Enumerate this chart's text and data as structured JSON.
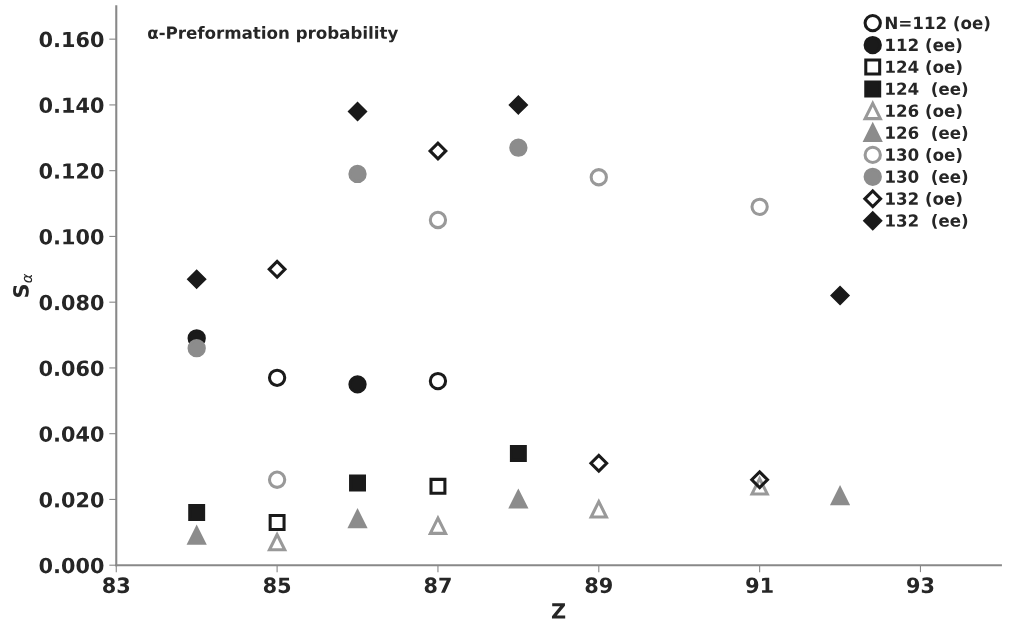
{
  "chart_data": {
    "type": "scatter",
    "xlabel": "Z",
    "ylabel": "S$_{α}$",
    "annotations": [
      "α-Preformation probability"
    ],
    "xlim": [
      83,
      94
    ],
    "xticks": [
      83,
      85,
      87,
      89,
      91,
      93
    ],
    "ylim": [
      0,
      0.17
    ],
    "yticks": [
      {
        "value": 0,
        "label": "0.000"
      },
      {
        "value": 0.02,
        "label": "0.020"
      },
      {
        "value": 0.04,
        "label": "0.040"
      },
      {
        "value": 0.06,
        "label": "0.060"
      },
      {
        "value": 0.08,
        "label": "0.080"
      },
      {
        "value": 0.1,
        "label": "0.100"
      },
      {
        "value": 0.12,
        "label": "0.120"
      },
      {
        "value": 0.14,
        "label": "0.140"
      },
      {
        "value": 0.16,
        "label": "0.160"
      }
    ],
    "grid": false,
    "legend": "top right",
    "series": [
      {
        "name": "N=112 (oe)",
        "color": "#1a1a1a",
        "marker": "circle",
        "x": [
          85,
          87
        ],
        "values": [
          0.057,
          0.056
        ]
      },
      {
        "name": "112 (ee)",
        "color": "#1a1a1a",
        "marker": "circle",
        "x": [
          84,
          86
        ],
        "values": [
          0.069,
          0.055
        ]
      },
      {
        "name": "124 (oe)",
        "color": "#1a1a1a",
        "marker": "square",
        "x": [
          85,
          87
        ],
        "values": [
          0.013,
          0.024
        ]
      },
      {
        "name": "124  (ee)",
        "color": "#1a1a1a",
        "marker": "square",
        "x": [
          84,
          86,
          88
        ],
        "values": [
          0.016,
          0.025,
          0.034
        ]
      },
      {
        "name": "126 (oe)",
        "color": "#999999",
        "marker": "triangle",
        "x": [
          85,
          87,
          89,
          91
        ],
        "values": [
          0.007,
          0.012,
          0.017,
          0.024
        ]
      },
      {
        "name": "126  (ee)",
        "color": "#8c8c8c",
        "marker": "triangle",
        "x": [
          84,
          86,
          88,
          92
        ],
        "values": [
          0.009,
          0.014,
          0.02,
          0.021
        ]
      },
      {
        "name": "130 (oe)",
        "color": "#999999",
        "marker": "circle",
        "x": [
          85,
          87,
          89,
          91
        ],
        "values": [
          0.026,
          0.105,
          0.118,
          0.109
        ]
      },
      {
        "name": "130  (ee)",
        "color": "#8c8c8c",
        "marker": "circle",
        "x": [
          84,
          86,
          88
        ],
        "values": [
          0.066,
          0.119,
          0.127
        ]
      },
      {
        "name": "132 (oe)",
        "color": "#1a1a1a",
        "marker": "diamond",
        "x": [
          85,
          87,
          89,
          91
        ],
        "values": [
          0.09,
          0.126,
          0.031,
          0.026
        ]
      },
      {
        "name": "132  (ee)",
        "color": "#1a1a1a",
        "marker": "diamond",
        "x": [
          84,
          86,
          88,
          92
        ],
        "values": [
          0.087,
          0.138,
          0.14,
          0.082
        ]
      }
    ]
  }
}
